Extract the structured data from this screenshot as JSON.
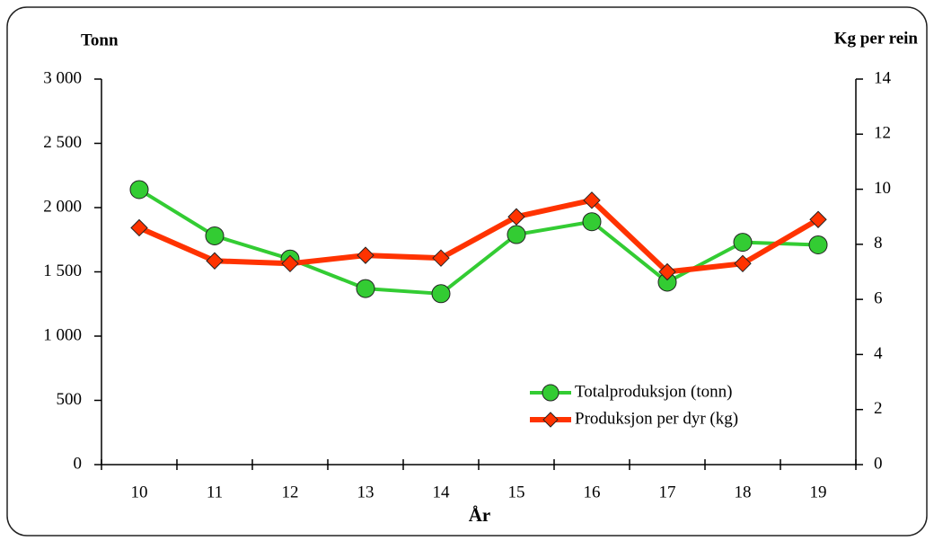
{
  "chart_data": {
    "type": "line",
    "y_label": "Tonn",
    "y2_label": "Kg per rein",
    "x_label": "År",
    "categories": [
      "10",
      "11",
      "12",
      "13",
      "14",
      "15",
      "16",
      "17",
      "18",
      "19"
    ],
    "series": [
      {
        "name": "Totalproduksjon (tonn)",
        "color": "#33cc33",
        "values": [
          2140,
          1780,
          1600,
          1370,
          1330,
          1790,
          1890,
          1420,
          1730,
          1710
        ]
      },
      {
        "name": "Produksjon per dyr (kg)",
        "color": "#ff3300",
        "axis": "y2",
        "values": [
          8.6,
          7.4,
          7.3,
          7.6,
          7.5,
          9.0,
          9.6,
          7.0,
          7.3,
          8.9
        ]
      }
    ],
    "ylim": [
      0,
      3000
    ],
    "yticks": [
      0,
      500,
      {
        "value": 1000,
        "label": "1 000"
      },
      {
        "value": 1500,
        "label": "1 500"
      },
      {
        "value": 2000,
        "label": "2 000"
      },
      {
        "value": 2500,
        "label": "2 500"
      },
      {
        "value": 3000,
        "label": "3 000"
      }
    ],
    "y2lim": [
      0,
      14
    ],
    "y2ticks": [
      0,
      2,
      4,
      6,
      8,
      10,
      12,
      14
    ],
    "legend": "lower right"
  }
}
